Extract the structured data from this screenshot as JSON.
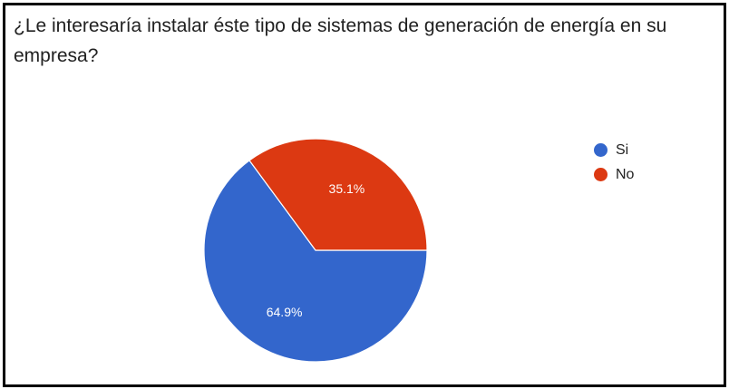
{
  "title": "¿Le interesaría instalar éste tipo de sistemas de generación de energía en su empresa?",
  "chart_data": {
    "type": "pie",
    "title": "¿Le interesaría instalar éste tipo de sistemas de generación de energía en su empresa?",
    "legend_position": "right",
    "slices": [
      {
        "label": "Si",
        "value": 64.9,
        "display": "64.9%",
        "color": "#3366cc"
      },
      {
        "label": "No",
        "value": 35.1,
        "display": "35.1%",
        "color": "#dc3912"
      }
    ]
  },
  "legend": [
    {
      "label": "Si",
      "color": "#3366cc"
    },
    {
      "label": "No",
      "color": "#dc3912"
    }
  ]
}
